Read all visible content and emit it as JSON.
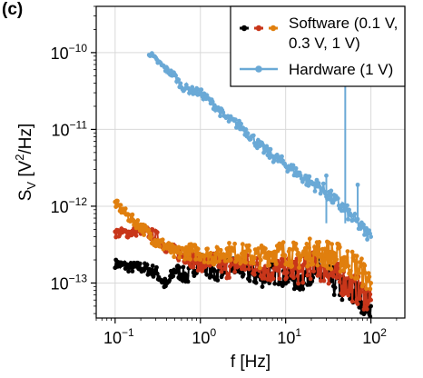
{
  "panel_label": "(c)",
  "colors": {
    "black": "#000000",
    "red": "#c8361a",
    "orange": "#e07f0e",
    "blue": "#6aa9d6",
    "grid": "#d9d9d9",
    "frame": "#000000"
  },
  "chart_data": {
    "type": "line",
    "title": "",
    "xlabel": "f [Hz]",
    "ylabel_base": "S",
    "ylabel_sub": "V",
    "ylabel_unit": "[V",
    "ylabel_sup": "2",
    "ylabel_tail": "/Hz]",
    "x_scale": "log",
    "y_scale": "log",
    "xlim": [
      0.06,
      250
    ],
    "ylim": [
      3.5e-14,
      4e-10
    ],
    "grid": true,
    "x_ticks": [
      {
        "value": 0.1,
        "base": "10",
        "exp": "−1"
      },
      {
        "value": 1,
        "base": "10",
        "exp": "0"
      },
      {
        "value": 10,
        "base": "10",
        "exp": "1"
      },
      {
        "value": 100,
        "base": "10",
        "exp": "2"
      }
    ],
    "y_ticks": [
      {
        "value": 1e-13,
        "base": "10",
        "exp": "−13"
      },
      {
        "value": 1e-12,
        "base": "10",
        "exp": "−12"
      },
      {
        "value": 1e-11,
        "base": "10",
        "exp": "−11"
      },
      {
        "value": 1e-10,
        "base": "10",
        "exp": "−10"
      }
    ],
    "legend": {
      "position": "top-right",
      "software_line1": "Software (0.1 V,",
      "software_line2": "0.3 V, 1 V)",
      "hardware": "Hardware (1 V)"
    },
    "series": [
      {
        "group": "Software",
        "voltage": "0.1 V",
        "color": "#000000",
        "x": [
          0.1,
          0.15,
          0.2,
          0.3,
          0.4,
          0.5,
          0.7,
          1.0,
          1.5,
          2,
          3,
          5,
          7,
          10,
          15,
          20,
          30,
          50,
          70,
          100
        ],
        "y": [
          1.8e-13,
          1.6e-13,
          1.6e-13,
          1.4e-13,
          9e-14,
          1.5e-13,
          1.2e-13,
          2e-13,
          1.3e-13,
          1.8e-13,
          1.5e-13,
          1.2e-13,
          1.4e-13,
          1.3e-13,
          1.1e-13,
          1.5e-13,
          1.2e-13,
          8e-14,
          7e-14,
          5e-14
        ]
      },
      {
        "group": "Software",
        "voltage": "0.3 V",
        "color": "#c8361a",
        "x": [
          0.1,
          0.15,
          0.2,
          0.3,
          0.4,
          0.5,
          0.7,
          1.0,
          1.5,
          2,
          3,
          5,
          7,
          10,
          15,
          20,
          30,
          50,
          70,
          100
        ],
        "y": [
          4.5e-13,
          4.5e-13,
          5e-13,
          4e-13,
          3e-13,
          2.5e-13,
          2.2e-13,
          1.8e-13,
          2e-13,
          1.5e-13,
          1.8e-13,
          1.6e-13,
          1.4e-13,
          1.6e-13,
          1.4e-13,
          1.7e-13,
          1.5e-13,
          1e-13,
          8e-14,
          6e-14
        ]
      },
      {
        "group": "Software",
        "voltage": "1 V",
        "color": "#e07f0e",
        "x": [
          0.1,
          0.15,
          0.2,
          0.3,
          0.4,
          0.5,
          0.7,
          1.0,
          1.5,
          2,
          3,
          5,
          7,
          10,
          15,
          20,
          30,
          50,
          70,
          100
        ],
        "y": [
          1.1e-12,
          7e-13,
          5.5e-13,
          3.5e-13,
          3e-13,
          2.4e-13,
          2.6e-13,
          2.5e-13,
          2.2e-13,
          2.6e-13,
          2.4e-13,
          2.2e-13,
          2.5e-13,
          2.5e-13,
          2.2e-13,
          2.6e-13,
          2.4e-13,
          2e-13,
          1.6e-13,
          1e-13
        ]
      },
      {
        "group": "Hardware",
        "voltage": "1 V",
        "color": "#6aa9d6",
        "x": [
          0.25,
          0.3,
          0.4,
          0.5,
          0.6,
          0.8,
          1.0,
          1.5,
          2,
          3,
          4,
          5,
          7,
          10,
          15,
          20,
          25,
          30,
          40,
          50,
          60,
          70,
          80,
          100
        ],
        "y": [
          1e-10,
          8e-11,
          6e-11,
          5e-11,
          3.6e-11,
          3.2e-11,
          3e-11,
          2e-11,
          1.4e-11,
          1.1e-11,
          8e-12,
          6e-12,
          4.5e-12,
          3.5e-12,
          2.5e-12,
          2e-12,
          1.8e-12,
          1.5e-12,
          1.1e-12,
          9e-13,
          7e-13,
          6e-13,
          5e-13,
          4e-13
        ]
      }
    ],
    "hardware_spikes": [
      {
        "x": 30,
        "y": 2.5e-12
      },
      {
        "x": 50,
        "y": 1.8e-10
      },
      {
        "x": 70,
        "y": 1.9e-12
      }
    ]
  }
}
